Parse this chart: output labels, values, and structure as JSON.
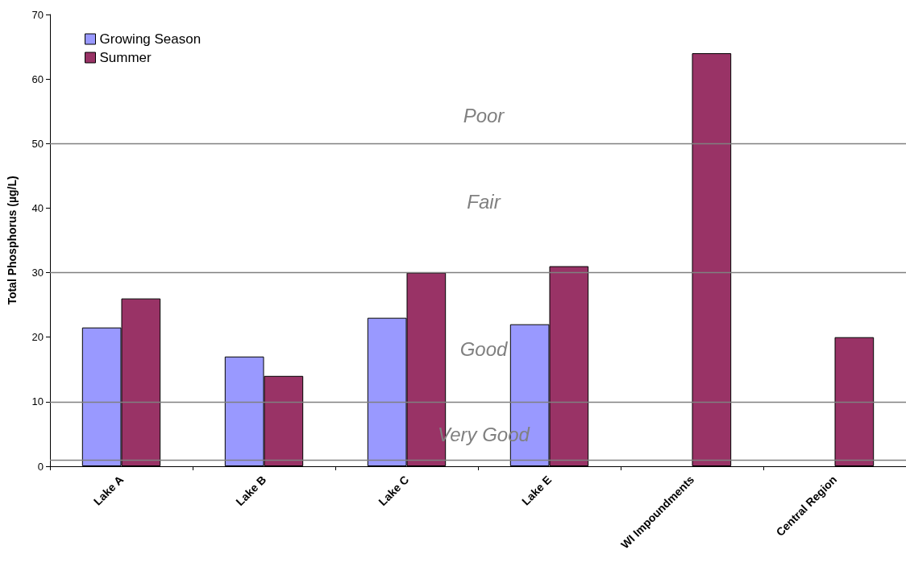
{
  "chart_data": {
    "type": "bar",
    "ylabel": "Total Phosphorus (µg/L)",
    "categories": [
      "Lake A",
      "Lake B",
      "Lake C",
      "Lake E",
      "WI Impoundments",
      "Central Region"
    ],
    "series": [
      {
        "name": "Growing Season",
        "color": "#9999ff",
        "values": [
          21.5,
          17,
          23,
          22,
          null,
          null
        ]
      },
      {
        "name": "Summer",
        "color": "#993366",
        "values": [
          26,
          14,
          30,
          31,
          64,
          20
        ]
      }
    ],
    "ylim": [
      0,
      70
    ],
    "yticks": [
      0,
      10,
      20,
      30,
      40,
      50,
      60,
      70
    ],
    "grid": false,
    "legend": "top left",
    "ref_lines": [
      {
        "axis": "y",
        "value": 1,
        "color": "#808080"
      },
      {
        "axis": "y",
        "value": 10,
        "color": "#808080"
      },
      {
        "axis": "y",
        "value": 30,
        "color": "#808080"
      },
      {
        "axis": "y",
        "value": 50,
        "color": "#808080"
      }
    ],
    "annotations": [
      "Poor",
      "Fair",
      "Good",
      "Very Good"
    ]
  }
}
